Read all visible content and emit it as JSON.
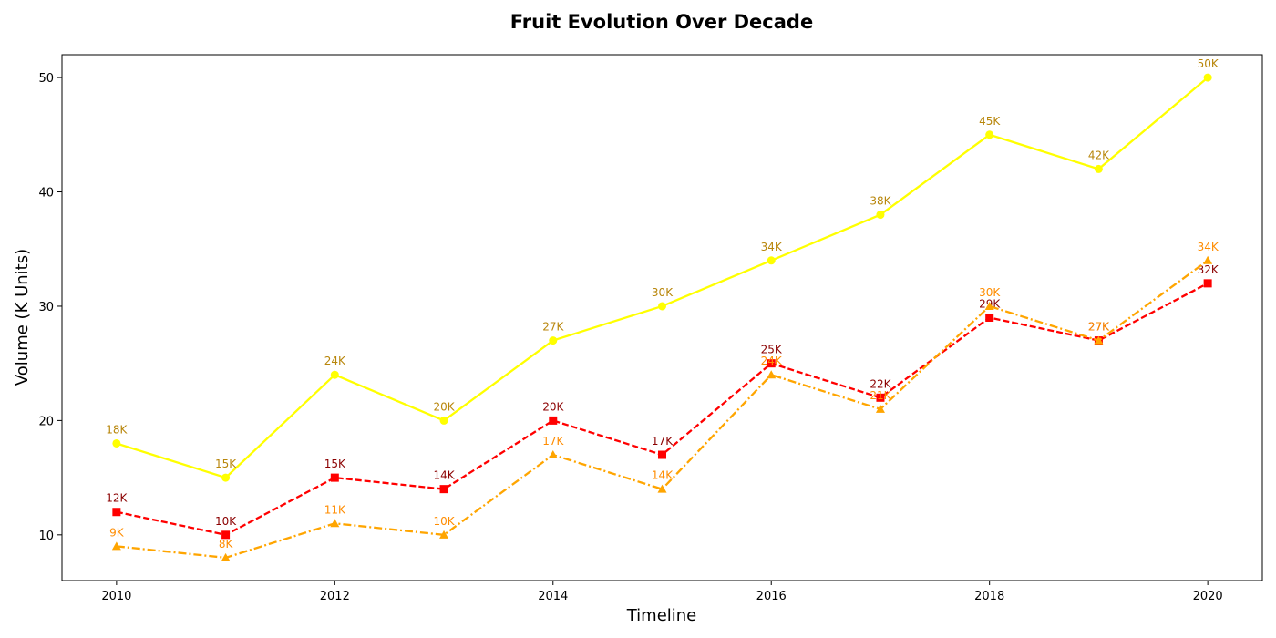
{
  "chart_data": {
    "type": "line",
    "title": "Fruit Evolution Over Decade",
    "xlabel": "Timeline",
    "ylabel": "Volume (K Units)",
    "x": [
      2010,
      2011,
      2012,
      2013,
      2014,
      2015,
      2016,
      2017,
      2018,
      2019,
      2020
    ],
    "xlim": [
      2009.5,
      2020.5
    ],
    "ylim": [
      6,
      52
    ],
    "xticks": [
      2010,
      2012,
      2014,
      2016,
      2018,
      2020
    ],
    "yticks": [
      10,
      20,
      30,
      40,
      50
    ],
    "grid": false,
    "legend": "none",
    "series": [
      {
        "values": [
          18,
          15,
          24,
          20,
          27,
          30,
          34,
          38,
          45,
          42,
          50
        ],
        "labels": [
          "18K",
          "15K",
          "24K",
          "20K",
          "27K",
          "30K",
          "34K",
          "38K",
          "45K",
          "42K",
          "50K"
        ],
        "color": "#ffff00",
        "label_color": "#b8860b",
        "line_style": "solid",
        "marker": "circle"
      },
      {
        "values": [
          12,
          10,
          15,
          14,
          20,
          17,
          25,
          22,
          29,
          27,
          32
        ],
        "labels": [
          "12K",
          "10K",
          "15K",
          "14K",
          "20K",
          "17K",
          "25K",
          "22K",
          "29K",
          "27K",
          "32K"
        ],
        "color": "#ff0000",
        "label_color": "#8b0000",
        "line_style": "dashed",
        "marker": "square"
      },
      {
        "values": [
          9,
          8,
          11,
          10,
          17,
          14,
          24,
          21,
          30,
          27,
          34
        ],
        "labels": [
          "9K",
          "8K",
          "11K",
          "10K",
          "17K",
          "14K",
          "24K",
          "21K",
          "30K",
          "27K",
          "34K"
        ],
        "color": "#ffa500",
        "label_color": "#ff8c00",
        "line_style": "dashdot",
        "marker": "triangle"
      }
    ]
  }
}
